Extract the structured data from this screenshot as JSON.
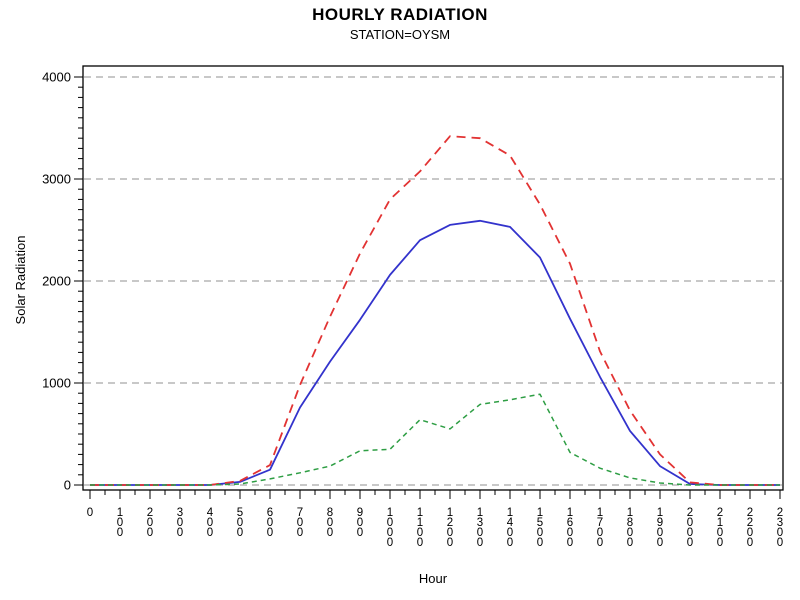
{
  "chart_data": {
    "type": "line",
    "title": "HOURLY RADIATION",
    "subtitle": "STATION=OYSM",
    "xlabel": "Hour",
    "ylabel": "Solar Radiation",
    "x_categories": [
      "0",
      "100",
      "200",
      "300",
      "400",
      "500",
      "600",
      "700",
      "800",
      "900",
      "1000",
      "1100",
      "1200",
      "1300",
      "1400",
      "1500",
      "1600",
      "1700",
      "1800",
      "1900",
      "2000",
      "2100",
      "2200",
      "2300"
    ],
    "y_ticks": [
      0,
      1000,
      2000,
      3000,
      4000
    ],
    "ylim": [
      0,
      4000
    ],
    "y_minor_step": 100,
    "x_minor_per_major": 2,
    "grid": "horizontal dashed gray at each major y tick",
    "legend_position": "none",
    "frame_color": "#000000",
    "gridline_color": "#909090",
    "series": [
      {
        "name": "blue-solid",
        "color": "#3333cc",
        "style": "solid",
        "values": [
          0,
          0,
          0,
          0,
          0,
          30,
          150,
          760,
          1210,
          1620,
          2060,
          2400,
          2550,
          2590,
          2530,
          2230,
          1630,
          1060,
          530,
          185,
          10,
          0,
          0,
          0
        ]
      },
      {
        "name": "red-dashed",
        "color": "#e23333",
        "style": "dashed",
        "values": [
          0,
          0,
          0,
          0,
          0,
          40,
          195,
          980,
          1650,
          2270,
          2800,
          3075,
          3420,
          3400,
          3230,
          2750,
          2170,
          1310,
          730,
          300,
          25,
          0,
          0,
          0
        ]
      },
      {
        "name": "green-short-dashed",
        "color": "#2e9e44",
        "style": "short-dashed",
        "values": [
          0,
          0,
          0,
          0,
          0,
          10,
          60,
          120,
          185,
          335,
          350,
          640,
          550,
          790,
          835,
          890,
          320,
          165,
          70,
          20,
          0,
          0,
          0,
          0
        ]
      }
    ]
  }
}
